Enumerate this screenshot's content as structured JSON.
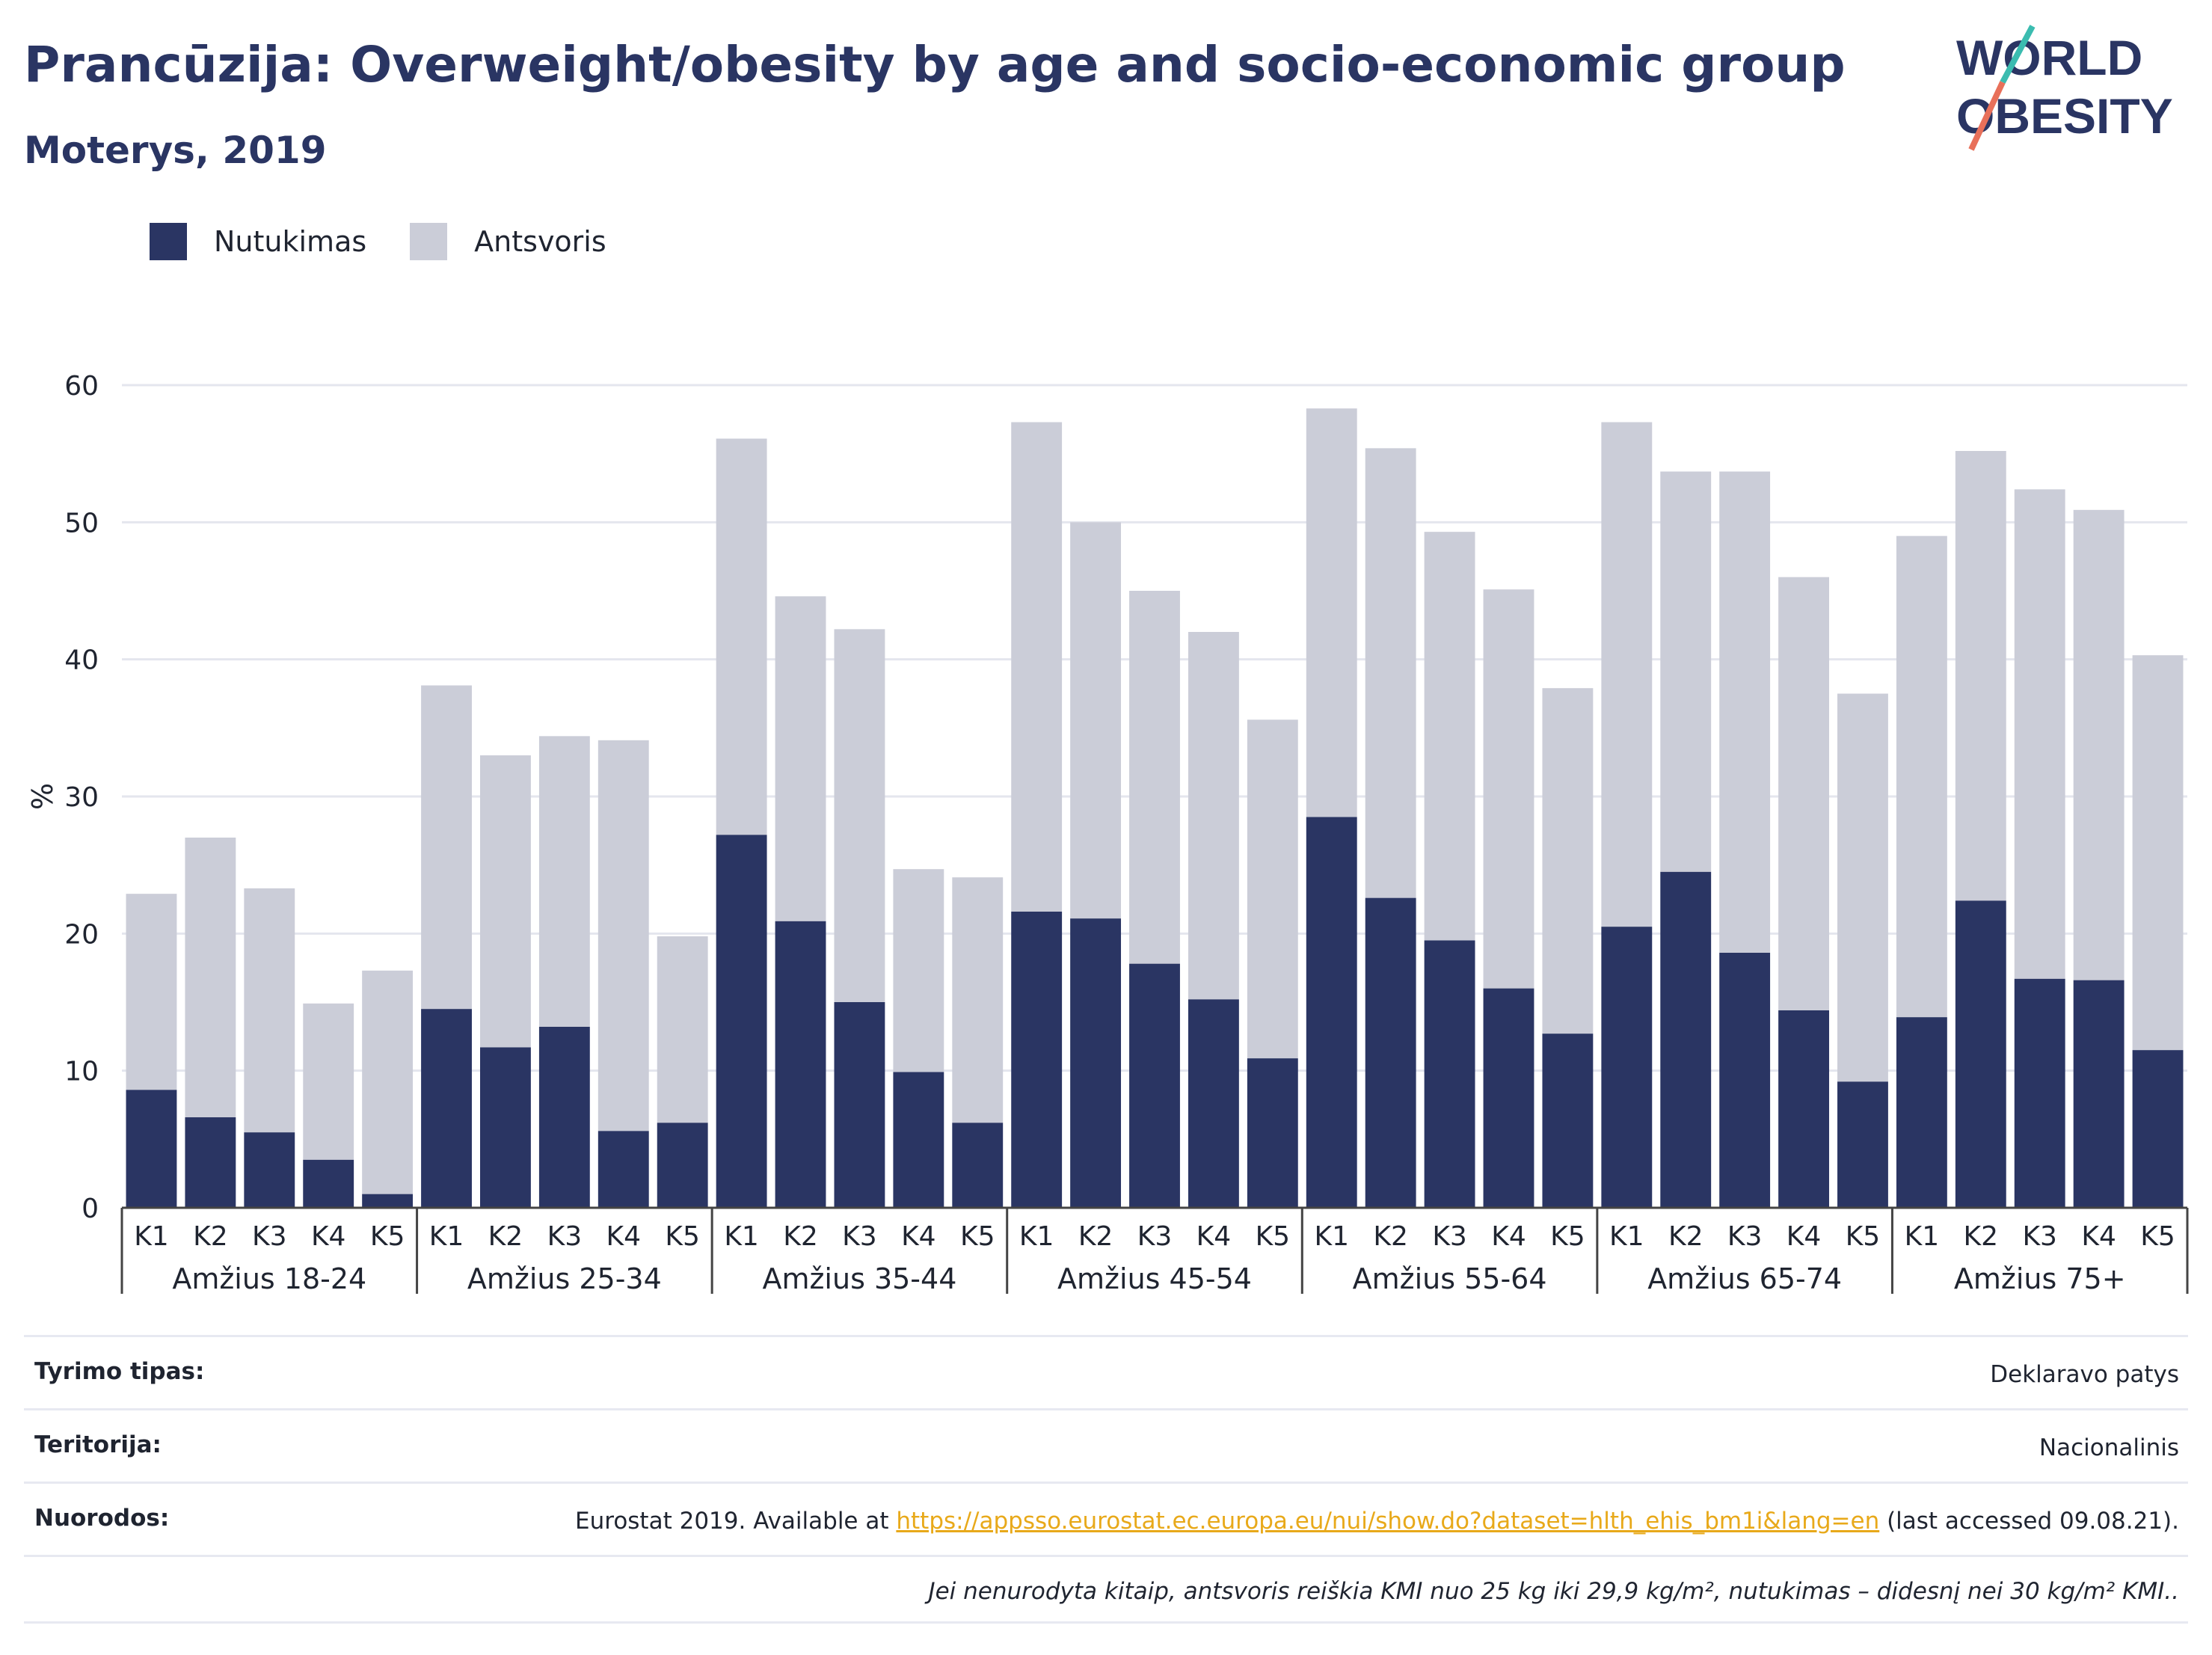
{
  "header": {
    "title": "Prancūzija: Overweight/obesity by age and socio-economic group",
    "subtitle": "Moterys, 2019"
  },
  "logo": {
    "line1": "WORLD",
    "line2": "OBESITY"
  },
  "colors": {
    "obesity": "#2a3563",
    "overweight": "#cbcdd8",
    "title": "#2a3563",
    "link": "#e8a91a",
    "grid": "#e4e6ee"
  },
  "chart_data": {
    "type": "bar",
    "stacked": true,
    "ylabel": "%",
    "ylim": [
      0,
      60
    ],
    "yticks": [
      0,
      10,
      20,
      30,
      40,
      50,
      60
    ],
    "grid": true,
    "legend_position": "top-left",
    "groups": [
      "Amžius 18-24",
      "Amžius 25-34",
      "Amžius 35-44",
      "Amžius 45-54",
      "Amžius 55-64",
      "Amžius 65-74",
      "Amžius 75+"
    ],
    "categories": [
      "K1",
      "K2",
      "K3",
      "K4",
      "K5"
    ],
    "series": [
      {
        "name": "Nutukimas",
        "values": [
          [
            8.6,
            6.6,
            5.5,
            3.5,
            1.0
          ],
          [
            14.5,
            11.7,
            13.2,
            5.6,
            6.2
          ],
          [
            27.2,
            20.9,
            15.0,
            9.9,
            6.2
          ],
          [
            21.6,
            21.1,
            17.8,
            15.2,
            10.9
          ],
          [
            28.5,
            22.6,
            19.5,
            16.0,
            12.7
          ],
          [
            20.5,
            24.5,
            18.6,
            14.4,
            9.2
          ],
          [
            13.9,
            22.4,
            16.7,
            16.6,
            11.5
          ]
        ]
      },
      {
        "name": "Antsvoris",
        "values": [
          [
            14.3,
            20.4,
            17.8,
            11.4,
            16.3
          ],
          [
            23.6,
            21.3,
            21.2,
            28.5,
            13.6
          ],
          [
            28.9,
            23.7,
            27.2,
            14.8,
            17.9
          ],
          [
            35.7,
            28.9,
            27.2,
            26.8,
            24.7
          ],
          [
            29.8,
            32.8,
            29.8,
            29.1,
            25.2
          ],
          [
            36.8,
            29.2,
            35.1,
            31.6,
            28.3
          ],
          [
            35.1,
            32.8,
            35.7,
            34.3,
            28.8
          ]
        ]
      }
    ]
  },
  "meta": {
    "survey_label": "Tyrimo tipas:",
    "survey_value": "Deklaravo patys",
    "territory_label": "Teritorija:",
    "territory_value": "Nacionalinis",
    "refs_label": "Nuorodos:",
    "refs_prefix": "Eurostat 2019. Available at ",
    "refs_link": "https://appsso.eurostat.ec.europa.eu/nui/show.do?dataset=hlth_ehis_bm1i&lang=en",
    "refs_suffix": " (last accessed 09.08.21).",
    "note": "Jei nenurodyta kitaip, antsvoris reiškia KMI nuo 25 kg iki 29,9 kg/m², nutukimas – didesnį nei 30 kg/m² KMI.."
  }
}
